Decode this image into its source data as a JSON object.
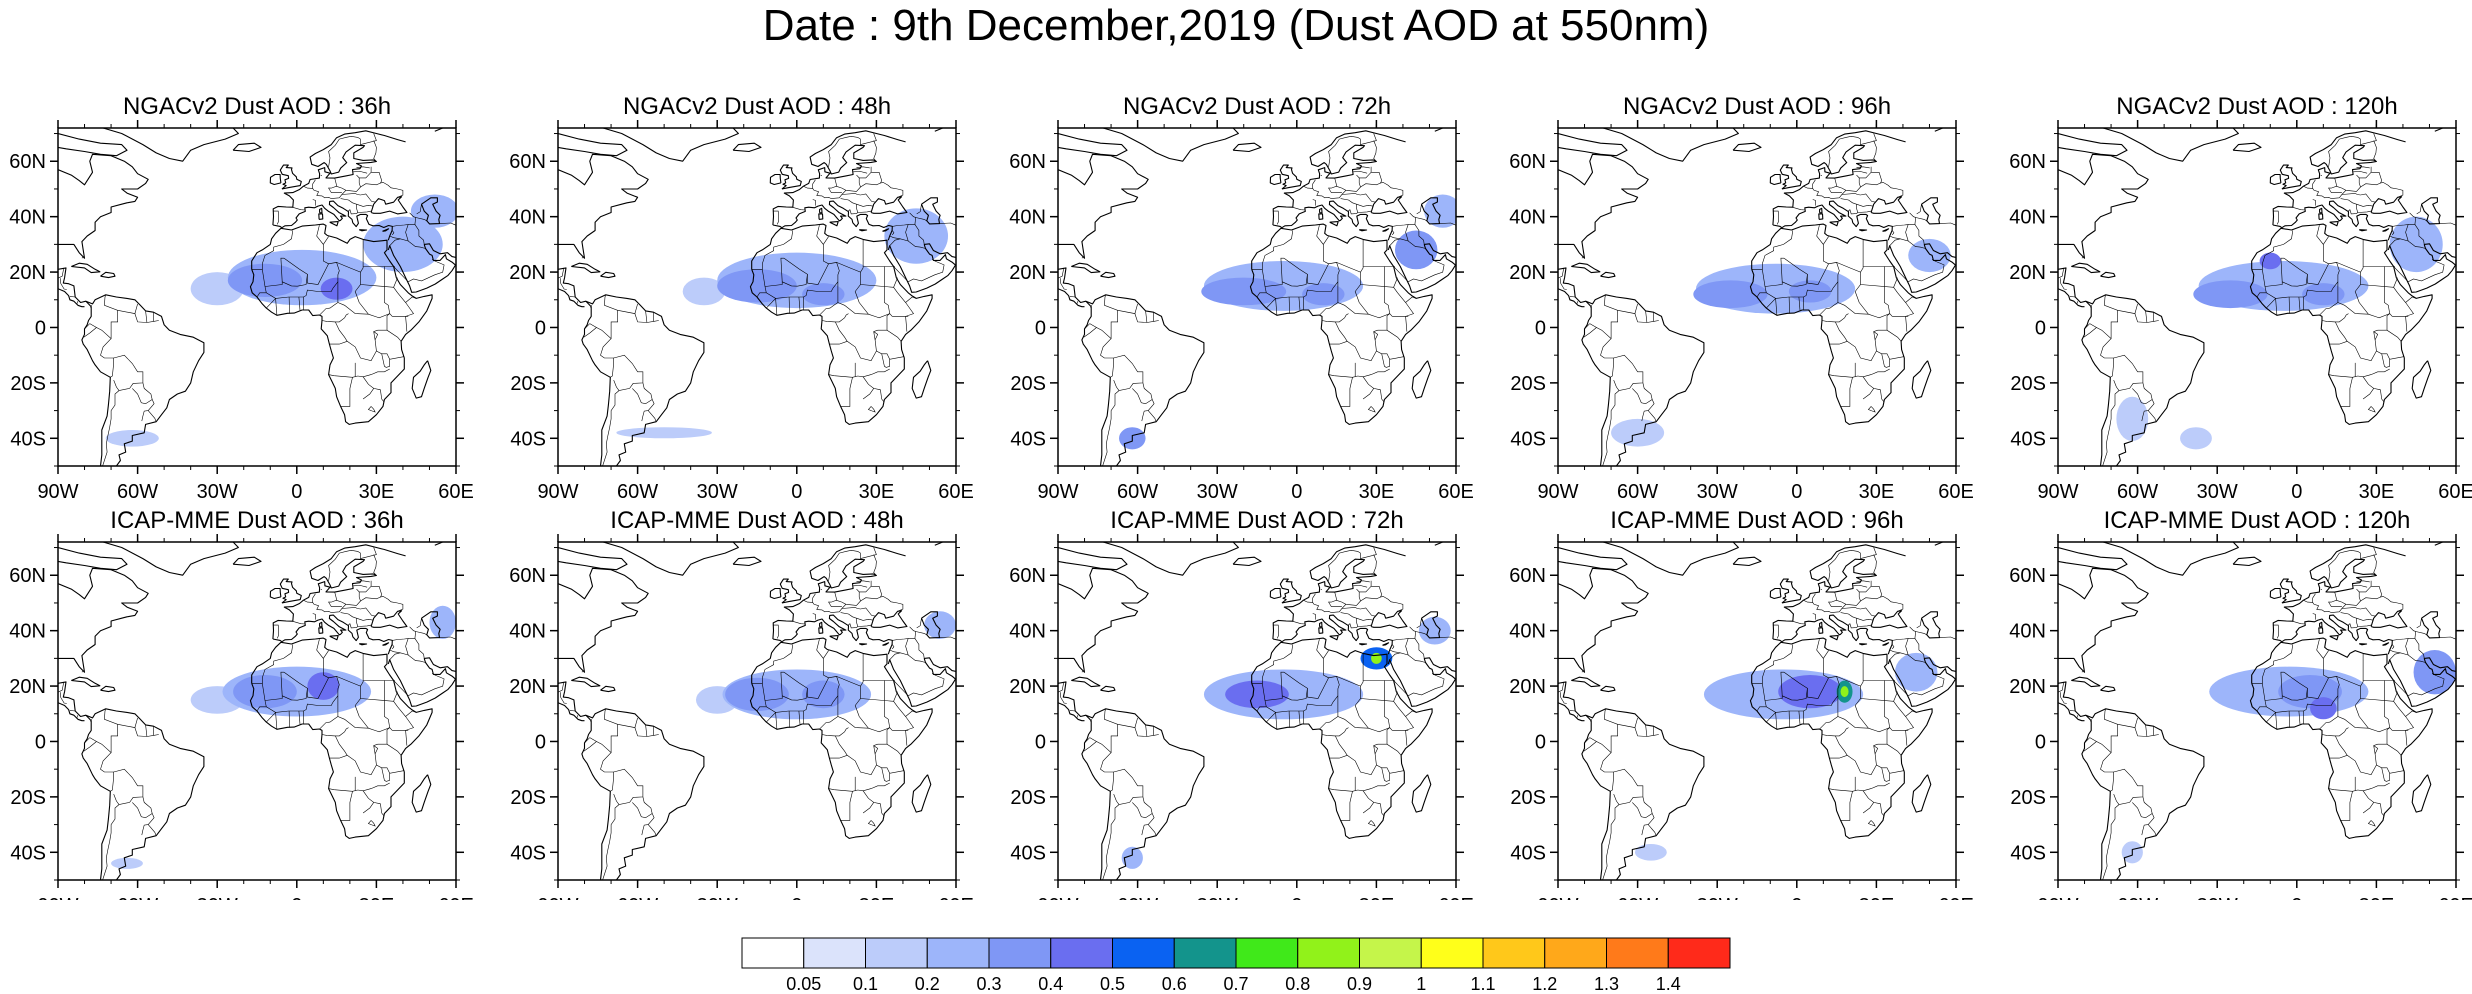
{
  "figure": {
    "title": "Date : 9th December,2019 (Dust AOD at 550nm)",
    "rows": [
      {
        "model": "NGACv2",
        "titles": [
          "NGACv2 Dust AOD : 36h",
          "NGACv2 Dust AOD : 48h",
          "NGACv2 Dust AOD : 72h",
          "NGACv2 Dust AOD : 96h",
          "NGACv2 Dust AOD : 120h"
        ]
      },
      {
        "model": "ICAP-MME",
        "titles": [
          "ICAP-MME Dust AOD : 36h",
          "ICAP-MME Dust AOD : 48h",
          "ICAP-MME Dust AOD : 72h",
          "ICAP-MME Dust AOD : 96h",
          "ICAP-MME Dust AOD : 120h"
        ]
      }
    ]
  },
  "map": {
    "lon_range": [
      -90,
      60
    ],
    "lat_range": [
      -50,
      72
    ],
    "lon_ticks": [
      -90,
      -60,
      -30,
      0,
      30,
      60
    ],
    "lon_tick_labels": [
      "90W",
      "60W",
      "30W",
      "0",
      "30E",
      "60E"
    ],
    "lat_ticks": [
      60,
      40,
      20,
      0,
      -20,
      -40
    ],
    "lat_tick_labels": [
      "60N",
      "40N",
      "20N",
      "0",
      "20S",
      "40S"
    ],
    "coastline_color": "#000000"
  },
  "colorbar": {
    "labels": [
      "0.05",
      "0.1",
      "0.2",
      "0.3",
      "0.4",
      "0.5",
      "0.6",
      "0.7",
      "0.8",
      "0.9",
      "1",
      "1.1",
      "1.2",
      "1.3",
      "1.4"
    ],
    "colors": [
      "#ffffff",
      "#dbe3fb",
      "#bcccfa",
      "#9db5fa",
      "#7f97f5",
      "#6a6ef0",
      "#0a62f2",
      "#13948c",
      "#40e91a",
      "#91f21a",
      "#c5f54a",
      "#ffff1a",
      "#ffc81a",
      "#ffa81a",
      "#ff7a1a",
      "#ff2a1a"
    ]
  },
  "chart_data": {
    "type": "heatmap",
    "title": "Date : 9th December,2019 (Dust AOD at 550nm)",
    "variable": "Dust AOD at 550nm",
    "levels": [
      0.05,
      0.1,
      0.2,
      0.3,
      0.4,
      0.5,
      0.6,
      0.7,
      0.8,
      0.9,
      1,
      1.1,
      1.2,
      1.3,
      1.4
    ],
    "panels": [
      {
        "title": "NGACv2 Dust AOD : 36h",
        "blobs": [
          {
            "lon": 2,
            "lat": 18,
            "rlon": 28,
            "rlat": 10,
            "aod": 0.2
          },
          {
            "lon": -12,
            "lat": 17,
            "rlon": 14,
            "rlat": 6,
            "aod": 0.3
          },
          {
            "lon": 15,
            "lat": 14,
            "rlon": 6,
            "rlat": 4,
            "aod": 0.4
          },
          {
            "lon": 40,
            "lat": 30,
            "rlon": 15,
            "rlat": 10,
            "aod": 0.2
          },
          {
            "lon": 52,
            "lat": 42,
            "rlon": 9,
            "rlat": 6,
            "aod": 0.2
          },
          {
            "lon": -30,
            "lat": 14,
            "rlon": 10,
            "rlat": 6,
            "aod": 0.1
          },
          {
            "lon": -62,
            "lat": -40,
            "rlon": 10,
            "rlat": 3,
            "aod": 0.1
          }
        ]
      },
      {
        "title": "NGACv2 Dust AOD : 48h",
        "blobs": [
          {
            "lon": 0,
            "lat": 17,
            "rlon": 30,
            "rlat": 10,
            "aod": 0.2
          },
          {
            "lon": -15,
            "lat": 15,
            "rlon": 15,
            "rlat": 6,
            "aod": 0.3
          },
          {
            "lon": 10,
            "lat": 12,
            "rlon": 8,
            "rlat": 4,
            "aod": 0.3
          },
          {
            "lon": 45,
            "lat": 33,
            "rlon": 12,
            "rlat": 10,
            "aod": 0.2
          },
          {
            "lon": -35,
            "lat": 13,
            "rlon": 8,
            "rlat": 5,
            "aod": 0.1
          },
          {
            "lon": -50,
            "lat": -38,
            "rlon": 18,
            "rlat": 2,
            "aod": 0.1
          }
        ]
      },
      {
        "title": "NGACv2 Dust AOD : 72h",
        "blobs": [
          {
            "lon": -5,
            "lat": 15,
            "rlon": 30,
            "rlat": 9,
            "aod": 0.2
          },
          {
            "lon": -20,
            "lat": 13,
            "rlon": 16,
            "rlat": 5,
            "aod": 0.3
          },
          {
            "lon": 10,
            "lat": 12,
            "rlon": 8,
            "rlat": 4,
            "aod": 0.3
          },
          {
            "lon": 45,
            "lat": 28,
            "rlon": 8,
            "rlat": 7,
            "aod": 0.3
          },
          {
            "lon": 55,
            "lat": 42,
            "rlon": 7,
            "rlat": 6,
            "aod": 0.2
          },
          {
            "lon": -62,
            "lat": -40,
            "rlon": 5,
            "rlat": 4,
            "aod": 0.3
          }
        ]
      },
      {
        "title": "NGACv2 Dust AOD : 96h",
        "blobs": [
          {
            "lon": -8,
            "lat": 14,
            "rlon": 30,
            "rlat": 9,
            "aod": 0.2
          },
          {
            "lon": -25,
            "lat": 12,
            "rlon": 14,
            "rlat": 5,
            "aod": 0.3
          },
          {
            "lon": 5,
            "lat": 13,
            "rlon": 8,
            "rlat": 4,
            "aod": 0.3
          },
          {
            "lon": 50,
            "lat": 26,
            "rlon": 8,
            "rlat": 6,
            "aod": 0.2
          },
          {
            "lon": -60,
            "lat": -38,
            "rlon": 10,
            "rlat": 5,
            "aod": 0.1
          }
        ]
      },
      {
        "title": "NGACv2 Dust AOD : 120h",
        "blobs": [
          {
            "lon": -5,
            "lat": 15,
            "rlon": 32,
            "rlat": 9,
            "aod": 0.2
          },
          {
            "lon": -25,
            "lat": 12,
            "rlon": 14,
            "rlat": 5,
            "aod": 0.3
          },
          {
            "lon": 10,
            "lat": 12,
            "rlon": 8,
            "rlat": 4,
            "aod": 0.3
          },
          {
            "lon": -10,
            "lat": 24,
            "rlon": 4,
            "rlat": 3,
            "aod": 0.4
          },
          {
            "lon": 45,
            "lat": 30,
            "rlon": 10,
            "rlat": 10,
            "aod": 0.2
          },
          {
            "lon": -62,
            "lat": -33,
            "rlon": 6,
            "rlat": 8,
            "aod": 0.1
          },
          {
            "lon": -38,
            "lat": -40,
            "rlon": 6,
            "rlat": 4,
            "aod": 0.1
          }
        ]
      },
      {
        "title": "ICAP-MME Dust AOD : 36h",
        "blobs": [
          {
            "lon": 0,
            "lat": 18,
            "rlon": 28,
            "rlat": 9,
            "aod": 0.2
          },
          {
            "lon": -12,
            "lat": 18,
            "rlon": 12,
            "rlat": 6,
            "aod": 0.3
          },
          {
            "lon": 10,
            "lat": 20,
            "rlon": 6,
            "rlat": 5,
            "aod": 0.4
          },
          {
            "lon": 55,
            "lat": 43,
            "rlon": 5,
            "rlat": 6,
            "aod": 0.2
          },
          {
            "lon": -30,
            "lat": 15,
            "rlon": 10,
            "rlat": 5,
            "aod": 0.1
          },
          {
            "lon": -64,
            "lat": -44,
            "rlon": 6,
            "rlat": 2,
            "aod": 0.1
          }
        ]
      },
      {
        "title": "ICAP-MME Dust AOD : 48h",
        "blobs": [
          {
            "lon": 0,
            "lat": 17,
            "rlon": 28,
            "rlat": 9,
            "aod": 0.2
          },
          {
            "lon": -15,
            "lat": 17,
            "rlon": 12,
            "rlat": 6,
            "aod": 0.3
          },
          {
            "lon": 10,
            "lat": 17,
            "rlon": 8,
            "rlat": 5,
            "aod": 0.3
          },
          {
            "lon": 54,
            "lat": 42,
            "rlon": 6,
            "rlat": 5,
            "aod": 0.2
          },
          {
            "lon": -30,
            "lat": 15,
            "rlon": 8,
            "rlat": 5,
            "aod": 0.1
          }
        ]
      },
      {
        "title": "ICAP-MME Dust AOD : 72h",
        "blobs": [
          {
            "lon": -5,
            "lat": 17,
            "rlon": 30,
            "rlat": 9,
            "aod": 0.2
          },
          {
            "lon": -15,
            "lat": 17,
            "rlon": 12,
            "rlat": 5,
            "aod": 0.4
          },
          {
            "lon": 30,
            "lat": 30,
            "rlon": 6,
            "rlat": 4,
            "aod": 0.5
          },
          {
            "lon": 30,
            "lat": 30,
            "rlon": 2,
            "rlat": 2,
            "aod": 0.8
          },
          {
            "lon": 52,
            "lat": 40,
            "rlon": 6,
            "rlat": 5,
            "aod": 0.2
          },
          {
            "lon": -62,
            "lat": -42,
            "rlon": 4,
            "rlat": 4,
            "aod": 0.2
          }
        ]
      },
      {
        "title": "ICAP-MME Dust AOD : 96h",
        "blobs": [
          {
            "lon": -5,
            "lat": 17,
            "rlon": 30,
            "rlat": 9,
            "aod": 0.2
          },
          {
            "lon": 5,
            "lat": 18,
            "rlon": 12,
            "rlat": 6,
            "aod": 0.4
          },
          {
            "lon": 18,
            "lat": 18,
            "rlon": 3,
            "rlat": 4,
            "aod": 0.6
          },
          {
            "lon": 18,
            "lat": 18,
            "rlon": 1.5,
            "rlat": 2,
            "aod": 0.8
          },
          {
            "lon": 45,
            "lat": 25,
            "rlon": 8,
            "rlat": 7,
            "aod": 0.2
          },
          {
            "lon": -55,
            "lat": -40,
            "rlon": 6,
            "rlat": 3,
            "aod": 0.1
          }
        ]
      },
      {
        "title": "ICAP-MME Dust AOD : 120h",
        "blobs": [
          {
            "lon": -3,
            "lat": 18,
            "rlon": 30,
            "rlat": 9,
            "aod": 0.2
          },
          {
            "lon": 5,
            "lat": 18,
            "rlon": 12,
            "rlat": 6,
            "aod": 0.3
          },
          {
            "lon": 10,
            "lat": 12,
            "rlon": 5,
            "rlat": 4,
            "aod": 0.4
          },
          {
            "lon": 52,
            "lat": 25,
            "rlon": 8,
            "rlat": 8,
            "aod": 0.3
          },
          {
            "lon": -62,
            "lat": -40,
            "rlon": 4,
            "rlat": 4,
            "aod": 0.1
          }
        ]
      }
    ]
  }
}
